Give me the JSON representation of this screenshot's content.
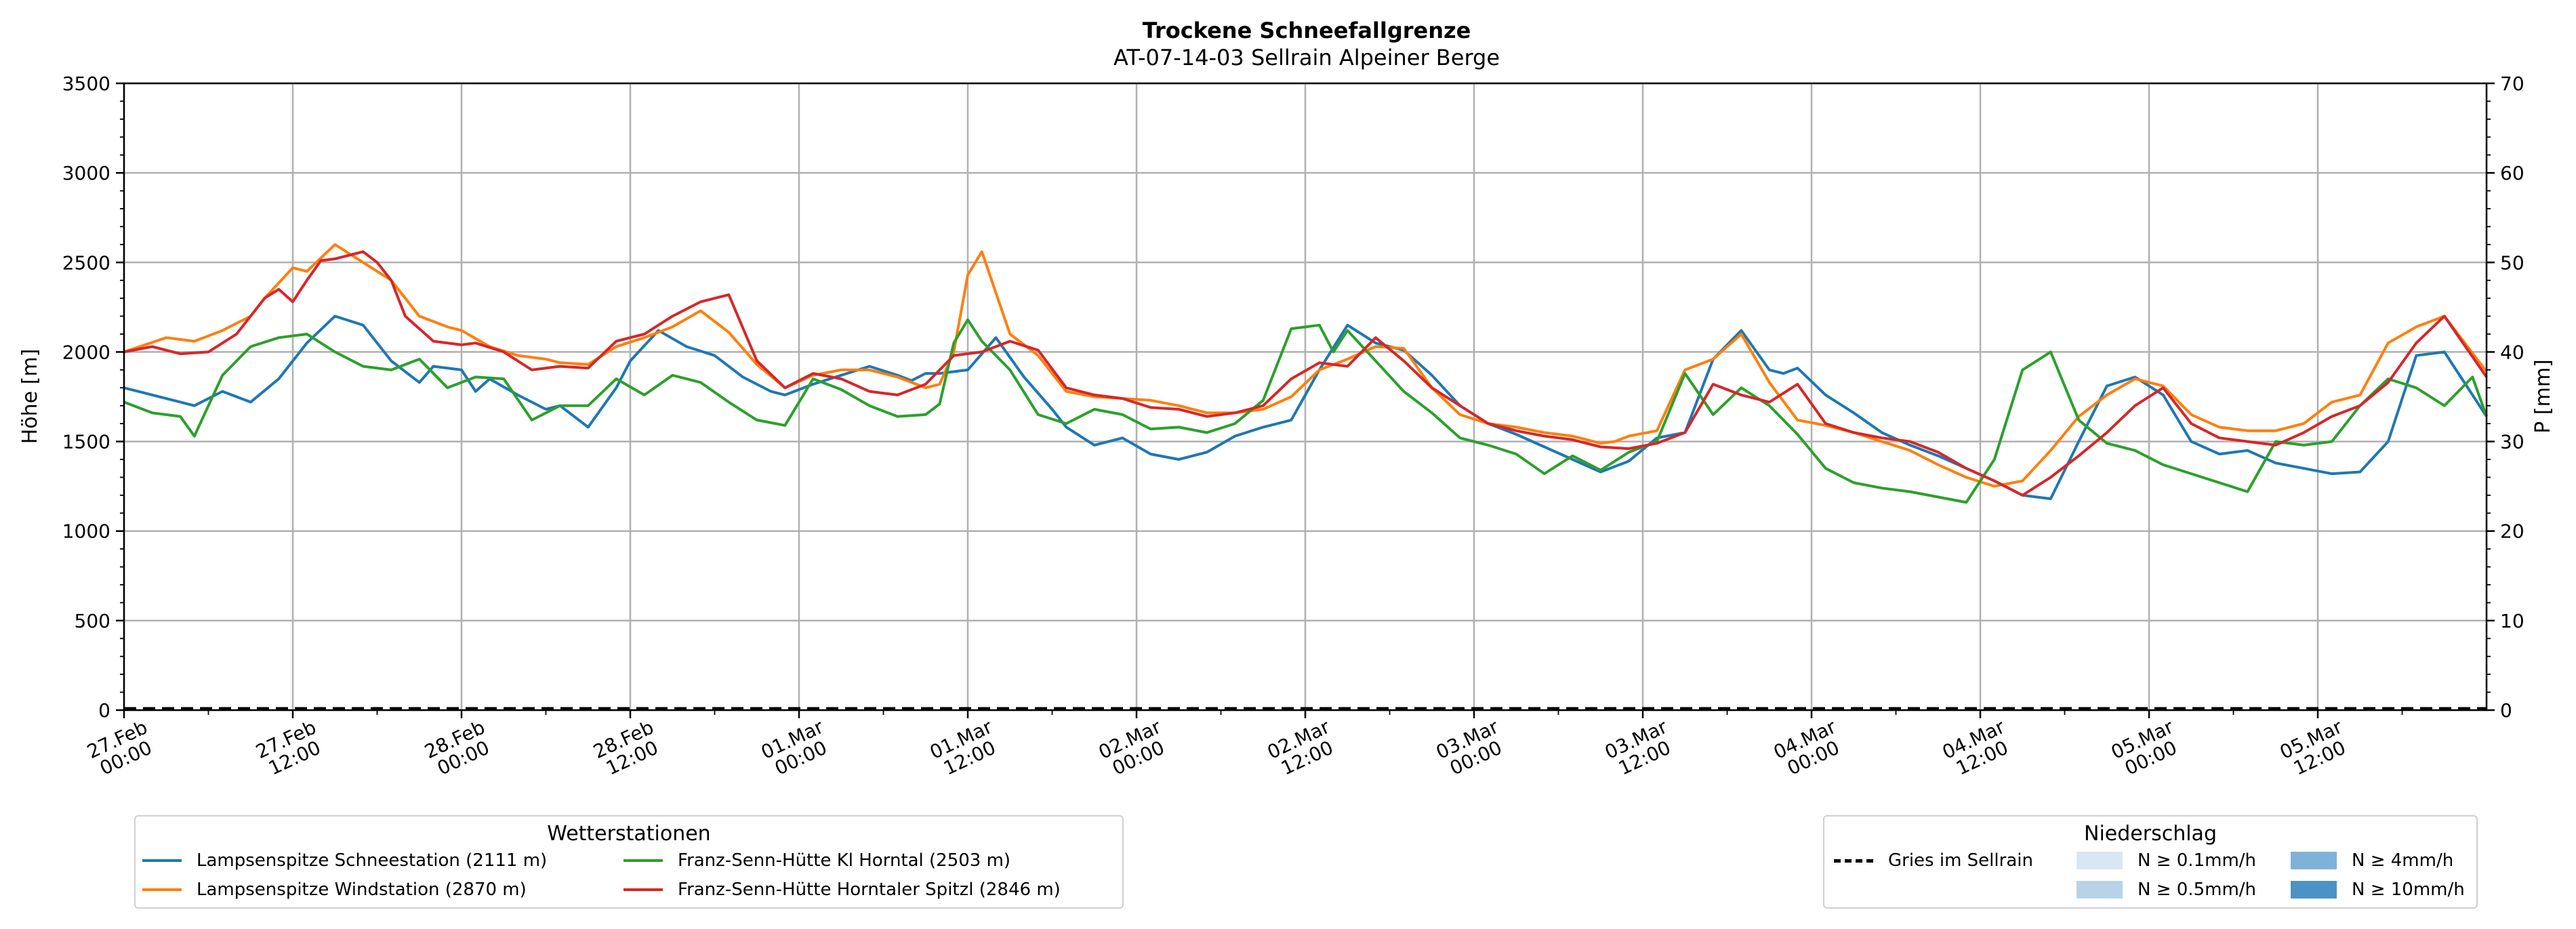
{
  "chart_data": {
    "type": "line",
    "title": "Trockene Schneefallgrenze",
    "subtitle": "AT-07-14-03 Sellrain Alpeiner Berge",
    "ylabel": "Höhe [m]",
    "y2label": "P [mm]",
    "ylim": [
      0,
      3500
    ],
    "y2lim": [
      0,
      70
    ],
    "yticks": [
      0,
      500,
      1000,
      1500,
      2000,
      2500,
      3000,
      3500
    ],
    "y2ticks": [
      0,
      10,
      20,
      30,
      40,
      50,
      60,
      70
    ],
    "xlim_hours": [
      0,
      168
    ],
    "xtick_hours": [
      0,
      12,
      24,
      36,
      48,
      60,
      72,
      84,
      96,
      108,
      120,
      132,
      144,
      156
    ],
    "xticks": [
      "27.Feb\n00:00",
      "27.Feb\n12:00",
      "28.Feb\n00:00",
      "28.Feb\n12:00",
      "01.Mar\n00:00",
      "01.Mar\n12:00",
      "02.Mar\n00:00",
      "02.Mar\n12:00",
      "03.Mar\n00:00",
      "03.Mar\n12:00",
      "04.Mar\n00:00",
      "04.Mar\n12:00",
      "05.Mar\n00:00",
      "05.Mar\n12:00"
    ],
    "grid": true,
    "series": [
      {
        "name": "Lampsenspitze Schneestation (2111 m)",
        "color": "#1f77b4",
        "x": [
          0,
          5,
          7,
          9,
          11,
          13,
          15,
          17,
          19,
          21,
          22,
          24,
          25,
          26,
          28,
          30,
          31,
          33,
          35,
          36,
          38,
          40,
          42,
          44,
          46,
          47,
          49,
          51,
          53,
          55,
          56,
          57,
          58,
          60,
          62,
          64,
          66,
          67,
          69,
          71,
          73,
          75,
          77,
          79,
          81,
          83,
          85,
          87,
          89,
          91,
          93,
          95,
          97,
          99,
          101,
          103,
          105,
          107,
          109,
          111,
          113,
          115,
          117,
          118,
          119,
          121,
          123,
          125,
          127,
          129,
          131,
          133,
          135,
          137,
          139,
          141,
          143,
          145,
          147,
          149,
          151,
          153,
          155,
          157,
          159,
          161,
          163,
          165,
          168
        ],
        "values": [
          1800,
          1700,
          1780,
          1720,
          1850,
          2050,
          2200,
          2150,
          1950,
          1830,
          1920,
          1900,
          1780,
          1850,
          1760,
          1680,
          1700,
          1580,
          1800,
          1950,
          2120,
          2030,
          1980,
          1860,
          1780,
          1760,
          1820,
          1870,
          1920,
          1870,
          1840,
          1880,
          1880,
          1900,
          2080,
          1860,
          1680,
          1580,
          1480,
          1520,
          1430,
          1400,
          1440,
          1530,
          1580,
          1620,
          1900,
          2150,
          2050,
          2010,
          1870,
          1700,
          1600,
          1540,
          1470,
          1400,
          1330,
          1390,
          1520,
          1550,
          1960,
          2120,
          1900,
          1880,
          1910,
          1760,
          1660,
          1550,
          1480,
          1420,
          1350,
          1280,
          1200,
          1180,
          1500,
          1810,
          1860,
          1760,
          1500,
          1430,
          1450,
          1380,
          1350,
          1320,
          1330,
          1500,
          1980,
          2000,
          1640
        ]
      },
      {
        "name": "Lampsenspitze Windstation (2870 m)",
        "color": "#ff7f0e",
        "x": [
          0,
          3,
          5,
          7,
          9,
          10,
          12,
          13,
          15,
          17,
          19,
          21,
          23,
          24,
          26,
          28,
          30,
          31,
          33,
          35,
          37,
          39,
          41,
          43,
          45,
          47,
          49,
          51,
          53,
          55,
          57,
          58,
          59,
          60,
          61,
          63,
          65,
          67,
          69,
          71,
          73,
          75,
          77,
          79,
          81,
          83,
          85,
          87,
          89,
          91,
          93,
          95,
          97,
          99,
          101,
          103,
          105,
          106,
          107,
          109,
          111,
          113,
          115,
          117,
          119,
          121,
          123,
          125,
          127,
          129,
          131,
          133,
          135,
          137,
          139,
          141,
          143,
          145,
          147,
          149,
          151,
          153,
          155,
          157,
          159,
          161,
          163,
          165,
          168
        ],
        "values": [
          2000,
          2080,
          2060,
          2120,
          2200,
          2300,
          2470,
          2450,
          2600,
          2500,
          2400,
          2200,
          2140,
          2120,
          2030,
          1980,
          1960,
          1940,
          1930,
          2030,
          2080,
          2140,
          2230,
          2110,
          1930,
          1800,
          1870,
          1900,
          1900,
          1860,
          1800,
          1820,
          2000,
          2430,
          2560,
          2100,
          1980,
          1780,
          1750,
          1740,
          1730,
          1700,
          1660,
          1660,
          1680,
          1750,
          1900,
          1960,
          2030,
          2020,
          1800,
          1650,
          1600,
          1580,
          1550,
          1530,
          1490,
          1500,
          1530,
          1560,
          1900,
          1960,
          2100,
          1830,
          1620,
          1590,
          1550,
          1500,
          1450,
          1370,
          1300,
          1250,
          1280,
          1450,
          1640,
          1760,
          1850,
          1810,
          1650,
          1580,
          1560,
          1560,
          1600,
          1720,
          1760,
          2050,
          2140,
          2200,
          1890
        ]
      },
      {
        "name": "Franz-Senn-Hütte Kl Horntal (2503 m)",
        "color": "#2ca02c",
        "x": [
          0,
          2,
          4,
          5,
          7,
          9,
          11,
          13,
          15,
          17,
          19,
          21,
          23,
          25,
          27,
          29,
          31,
          33,
          35,
          37,
          39,
          41,
          43,
          45,
          47,
          49,
          51,
          53,
          55,
          57,
          58,
          59,
          60,
          61,
          63,
          65,
          67,
          69,
          71,
          73,
          75,
          77,
          79,
          81,
          83,
          85,
          86,
          87,
          89,
          91,
          93,
          95,
          97,
          99,
          101,
          103,
          105,
          107,
          109,
          111,
          113,
          115,
          117,
          119,
          121,
          123,
          125,
          127,
          129,
          131,
          133,
          135,
          137,
          139,
          141,
          143,
          145,
          147,
          149,
          151,
          153,
          155,
          157,
          159,
          161,
          163,
          165,
          167,
          168
        ],
        "values": [
          1720,
          1660,
          1640,
          1530,
          1870,
          2030,
          2080,
          2100,
          2000,
          1920,
          1900,
          1960,
          1800,
          1860,
          1850,
          1620,
          1700,
          1700,
          1850,
          1760,
          1870,
          1830,
          1720,
          1620,
          1590,
          1850,
          1790,
          1700,
          1640,
          1650,
          1710,
          2050,
          2180,
          2060,
          1900,
          1650,
          1600,
          1680,
          1650,
          1570,
          1580,
          1550,
          1600,
          1730,
          2130,
          2150,
          2000,
          2120,
          1950,
          1780,
          1660,
          1520,
          1480,
          1430,
          1320,
          1420,
          1340,
          1440,
          1500,
          1880,
          1650,
          1800,
          1700,
          1540,
          1350,
          1270,
          1240,
          1220,
          1190,
          1160,
          1400,
          1900,
          2000,
          1620,
          1490,
          1450,
          1370,
          1320,
          1270,
          1220,
          1500,
          1480,
          1500,
          1700,
          1850,
          1800,
          1700,
          1860,
          1640
        ]
      },
      {
        "name": "Franz-Senn-Hütte Horntaler Spitzl (2846 m)",
        "color": "#d62728",
        "x": [
          0,
          2,
          4,
          6,
          8,
          10,
          11,
          12,
          13,
          14,
          15,
          17,
          18,
          19,
          20,
          22,
          24,
          25,
          27,
          29,
          31,
          33,
          35,
          37,
          39,
          41,
          43,
          45,
          47,
          49,
          51,
          53,
          55,
          57,
          59,
          61,
          63,
          65,
          67,
          69,
          71,
          73,
          75,
          77,
          79,
          81,
          83,
          85,
          87,
          89,
          91,
          93,
          95,
          97,
          99,
          101,
          103,
          105,
          107,
          109,
          111,
          113,
          115,
          117,
          119,
          121,
          123,
          125,
          127,
          129,
          131,
          133,
          135,
          137,
          139,
          141,
          143,
          145,
          147,
          149,
          151,
          153,
          155,
          157,
          159,
          161,
          163,
          165,
          168
        ],
        "values": [
          2000,
          2030,
          1990,
          2000,
          2100,
          2300,
          2350,
          2280,
          2400,
          2510,
          2520,
          2560,
          2500,
          2400,
          2200,
          2060,
          2040,
          2050,
          2000,
          1900,
          1920,
          1910,
          2060,
          2100,
          2200,
          2280,
          2320,
          1950,
          1800,
          1880,
          1850,
          1780,
          1760,
          1820,
          1980,
          2000,
          2060,
          2010,
          1800,
          1760,
          1740,
          1690,
          1680,
          1640,
          1660,
          1700,
          1850,
          1940,
          1920,
          2080,
          1950,
          1800,
          1700,
          1600,
          1560,
          1530,
          1510,
          1470,
          1460,
          1490,
          1550,
          1820,
          1760,
          1720,
          1820,
          1600,
          1550,
          1520,
          1500,
          1440,
          1350,
          1280,
          1200,
          1300,
          1420,
          1550,
          1700,
          1800,
          1600,
          1520,
          1500,
          1480,
          1550,
          1640,
          1700,
          1830,
          2050,
          2200,
          1860
        ]
      }
    ],
    "precip_series": {
      "name": "Gries im Sellrain",
      "style": "dashed",
      "color": "#000000",
      "x": [
        0,
        168
      ],
      "values": [
        0,
        0
      ]
    },
    "legend_left": {
      "title": "Wetterstationen",
      "entries": [
        "Lampsenspitze Schneestation (2111 m)",
        "Lampsenspitze Windstation (2870 m)",
        "Franz-Senn-Hütte Kl Horntal (2503 m)",
        "Franz-Senn-Hütte Horntaler Spitzl (2846 m)"
      ],
      "placement": "bottom-left"
    },
    "legend_right": {
      "title": "Niederschlag",
      "line_label": "Gries im Sellrain",
      "bins": [
        {
          "label": "N ≥ 0.1mm/h",
          "color": "#d9e7f4"
        },
        {
          "label": "N ≥ 0.5mm/h",
          "color": "#b8d3e8"
        },
        {
          "label": "N ≥ 4mm/h",
          "color": "#7fb2d9"
        },
        {
          "label": "N ≥ 10mm/h",
          "color": "#4a93c4"
        }
      ],
      "placement": "bottom-right"
    }
  }
}
